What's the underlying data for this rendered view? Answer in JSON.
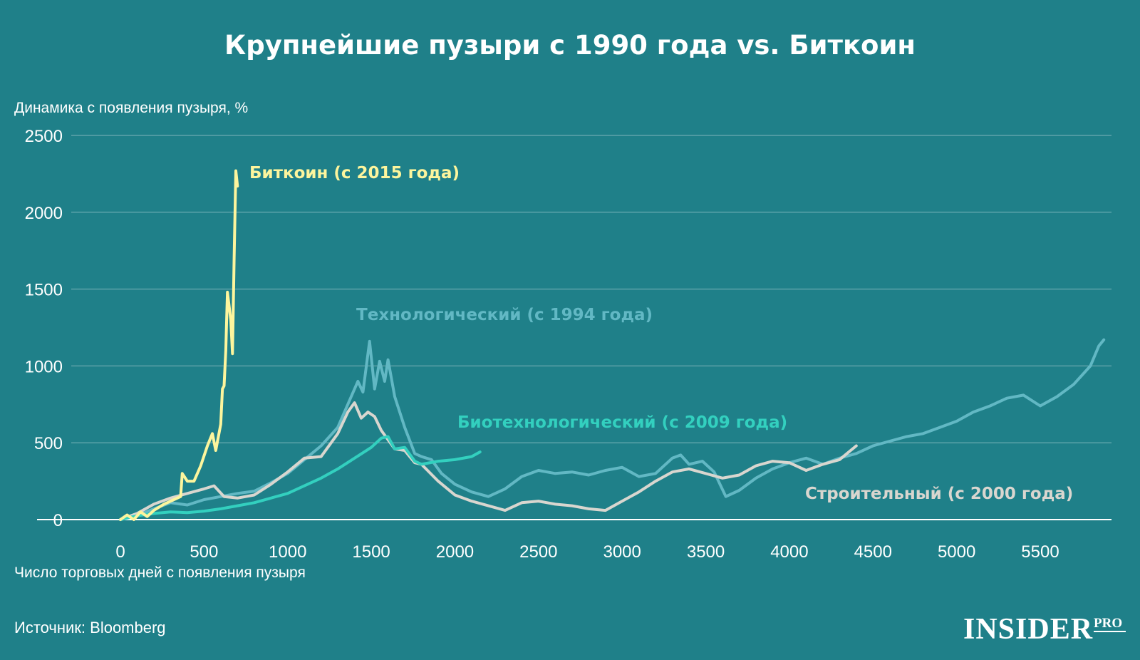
{
  "header": {
    "title": "Крупнейшие пузыри с 1990 года vs. Биткоин"
  },
  "footer": {
    "source": "Источник: Bloomberg",
    "logo_main": "INSIDER",
    "logo_pro": "PRO"
  },
  "chart_data": {
    "type": "line",
    "title": "Крупнейшие пузыри с 1990 года vs. Биткоин",
    "ylabel": "Динамика с появления пузыря, %",
    "xlabel": "Число торговых дней с появления пузыря",
    "xlim": [
      -500,
      6040
    ],
    "ylim": [
      0,
      2500
    ],
    "x_ticks": [
      0,
      500,
      1000,
      1500,
      2000,
      2500,
      3000,
      3500,
      4000,
      4500,
      5000,
      5500
    ],
    "y_ticks": [
      0,
      500,
      1000,
      1500,
      2000,
      2500
    ],
    "grid": "horizontal",
    "legend": "direct labels next to lines",
    "series": [
      {
        "name": "Технологический (с 1994 года)",
        "color": "#62b8c4",
        "points": [
          [
            0,
            0
          ],
          [
            100,
            25
          ],
          [
            200,
            70
          ],
          [
            300,
            110
          ],
          [
            400,
            95
          ],
          [
            500,
            130
          ],
          [
            600,
            150
          ],
          [
            700,
            170
          ],
          [
            800,
            185
          ],
          [
            900,
            240
          ],
          [
            1000,
            300
          ],
          [
            1100,
            390
          ],
          [
            1200,
            480
          ],
          [
            1300,
            600
          ],
          [
            1380,
            800
          ],
          [
            1420,
            900
          ],
          [
            1450,
            830
          ],
          [
            1490,
            1160
          ],
          [
            1520,
            850
          ],
          [
            1550,
            1030
          ],
          [
            1580,
            900
          ],
          [
            1600,
            1040
          ],
          [
            1640,
            800
          ],
          [
            1700,
            600
          ],
          [
            1760,
            430
          ],
          [
            1800,
            410
          ],
          [
            1860,
            390
          ],
          [
            1920,
            300
          ],
          [
            2000,
            230
          ],
          [
            2100,
            180
          ],
          [
            2200,
            150
          ],
          [
            2300,
            200
          ],
          [
            2400,
            280
          ],
          [
            2500,
            320
          ],
          [
            2600,
            300
          ],
          [
            2700,
            310
          ],
          [
            2800,
            290
          ],
          [
            2900,
            320
          ],
          [
            3000,
            340
          ],
          [
            3100,
            280
          ],
          [
            3200,
            300
          ],
          [
            3300,
            400
          ],
          [
            3350,
            420
          ],
          [
            3400,
            360
          ],
          [
            3480,
            380
          ],
          [
            3550,
            310
          ],
          [
            3620,
            150
          ],
          [
            3700,
            190
          ],
          [
            3800,
            270
          ],
          [
            3900,
            330
          ],
          [
            4000,
            370
          ],
          [
            4100,
            400
          ],
          [
            4200,
            360
          ],
          [
            4300,
            400
          ],
          [
            4400,
            430
          ],
          [
            4500,
            480
          ],
          [
            4600,
            510
          ],
          [
            4700,
            540
          ],
          [
            4800,
            560
          ],
          [
            4900,
            600
          ],
          [
            5000,
            640
          ],
          [
            5100,
            700
          ],
          [
            5200,
            740
          ],
          [
            5300,
            790
          ],
          [
            5400,
            810
          ],
          [
            5500,
            740
          ],
          [
            5600,
            800
          ],
          [
            5700,
            880
          ],
          [
            5800,
            1000
          ],
          [
            5850,
            1130
          ],
          [
            5880,
            1170
          ]
        ]
      },
      {
        "name": "Строительный (с 2000 года)",
        "color": "#d9d6cf",
        "points": [
          [
            0,
            0
          ],
          [
            100,
            40
          ],
          [
            200,
            100
          ],
          [
            300,
            140
          ],
          [
            400,
            170
          ],
          [
            500,
            200
          ],
          [
            560,
            220
          ],
          [
            620,
            150
          ],
          [
            700,
            140
          ],
          [
            800,
            160
          ],
          [
            900,
            230
          ],
          [
            1000,
            310
          ],
          [
            1100,
            400
          ],
          [
            1200,
            410
          ],
          [
            1300,
            560
          ],
          [
            1360,
            700
          ],
          [
            1400,
            760
          ],
          [
            1440,
            660
          ],
          [
            1480,
            700
          ],
          [
            1520,
            670
          ],
          [
            1560,
            580
          ],
          [
            1600,
            520
          ],
          [
            1640,
            460
          ],
          [
            1700,
            450
          ],
          [
            1760,
            370
          ],
          [
            1800,
            360
          ],
          [
            1900,
            250
          ],
          [
            2000,
            160
          ],
          [
            2100,
            120
          ],
          [
            2200,
            90
          ],
          [
            2300,
            60
          ],
          [
            2400,
            110
          ],
          [
            2500,
            120
          ],
          [
            2600,
            100
          ],
          [
            2700,
            90
          ],
          [
            2800,
            70
          ],
          [
            2900,
            60
          ],
          [
            3000,
            120
          ],
          [
            3100,
            180
          ],
          [
            3200,
            250
          ],
          [
            3300,
            310
          ],
          [
            3400,
            330
          ],
          [
            3500,
            300
          ],
          [
            3600,
            270
          ],
          [
            3700,
            290
          ],
          [
            3800,
            350
          ],
          [
            3900,
            380
          ],
          [
            4000,
            370
          ],
          [
            4100,
            320
          ],
          [
            4200,
            360
          ],
          [
            4300,
            390
          ],
          [
            4400,
            480
          ]
        ]
      },
      {
        "name": "Биотехнологический (с 2009 года)",
        "color": "#33d0bf",
        "points": [
          [
            0,
            0
          ],
          [
            100,
            25
          ],
          [
            200,
            40
          ],
          [
            300,
            50
          ],
          [
            400,
            45
          ],
          [
            500,
            55
          ],
          [
            600,
            70
          ],
          [
            700,
            90
          ],
          [
            800,
            110
          ],
          [
            900,
            140
          ],
          [
            1000,
            170
          ],
          [
            1100,
            220
          ],
          [
            1200,
            270
          ],
          [
            1300,
            330
          ],
          [
            1400,
            400
          ],
          [
            1500,
            470
          ],
          [
            1560,
            530
          ],
          [
            1600,
            540
          ],
          [
            1640,
            460
          ],
          [
            1700,
            470
          ],
          [
            1760,
            380
          ],
          [
            1800,
            360
          ],
          [
            1900,
            380
          ],
          [
            2000,
            390
          ],
          [
            2100,
            410
          ],
          [
            2150,
            440
          ]
        ]
      },
      {
        "name": "Биткоин (с 2015 года)",
        "color": "#fdf59d",
        "points": [
          [
            0,
            0
          ],
          [
            40,
            30
          ],
          [
            80,
            0
          ],
          [
            120,
            50
          ],
          [
            160,
            20
          ],
          [
            200,
            60
          ],
          [
            260,
            100
          ],
          [
            320,
            130
          ],
          [
            360,
            150
          ],
          [
            370,
            300
          ],
          [
            400,
            250
          ],
          [
            440,
            250
          ],
          [
            480,
            350
          ],
          [
            520,
            480
          ],
          [
            550,
            560
          ],
          [
            570,
            450
          ],
          [
            600,
            620
          ],
          [
            610,
            850
          ],
          [
            620,
            870
          ],
          [
            630,
            1100
          ],
          [
            640,
            1480
          ],
          [
            660,
            1300
          ],
          [
            670,
            1080
          ],
          [
            680,
            1700
          ],
          [
            690,
            2270
          ],
          [
            700,
            2170
          ]
        ]
      }
    ],
    "annotations": [
      {
        "text": "Биткоин (с 2015 года)",
        "color": "#fdf59d"
      },
      {
        "text": "Технологический (с 1994 года)",
        "color": "#62b8c4"
      },
      {
        "text": "Биотехнологический (с 2009 года)",
        "color": "#33d0bf"
      },
      {
        "text": "Строительный (с 2000 года)",
        "color": "#d9d6cf"
      }
    ]
  }
}
